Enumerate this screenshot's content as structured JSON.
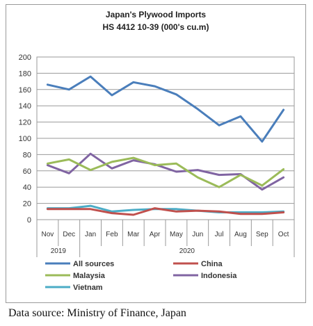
{
  "chart_data": {
    "type": "line",
    "title": "Japan's Plywood Imports",
    "subtitle": "HS 4412 10-39 (000's cu.m)",
    "x": [
      "Nov",
      "Dec",
      "Jan",
      "Feb",
      "Mar",
      "Apr",
      "May",
      "Jun",
      "Jul",
      "Aug",
      "Sep",
      "Oct"
    ],
    "year_labels": [
      {
        "label": "2019",
        "from": 0,
        "to": 1
      },
      {
        "label": "2020",
        "from": 2,
        "to": 11
      }
    ],
    "ylim": [
      0,
      200
    ],
    "yticks": [
      0,
      20,
      40,
      60,
      80,
      100,
      120,
      140,
      160,
      180,
      200
    ],
    "grid": true,
    "legend_position": "bottom",
    "series": [
      {
        "name": "All sources",
        "color": "#4a7ebb",
        "values": [
          166,
          160,
          176,
          153,
          169,
          164,
          154,
          136,
          116,
          127,
          96,
          135
        ]
      },
      {
        "name": "China",
        "color": "#c0504d",
        "values": [
          13,
          13,
          13,
          8,
          6,
          14,
          10,
          11,
          10,
          7,
          7,
          9
        ]
      },
      {
        "name": "Malaysia",
        "color": "#9bbb59",
        "values": [
          69,
          74,
          61,
          71,
          76,
          67,
          69,
          52,
          40,
          55,
          42,
          62
        ]
      },
      {
        "name": "Indonesia",
        "color": "#8064a2",
        "values": [
          67,
          57,
          81,
          63,
          73,
          68,
          59,
          61,
          55,
          56,
          37,
          52
        ]
      },
      {
        "name": "Vietnam",
        "color": "#4bacc6",
        "values": [
          14,
          14,
          17,
          10,
          12,
          13,
          13,
          11,
          9,
          9,
          9,
          10
        ]
      }
    ]
  },
  "source_note": "Data source: Ministry of Finance, Japan"
}
